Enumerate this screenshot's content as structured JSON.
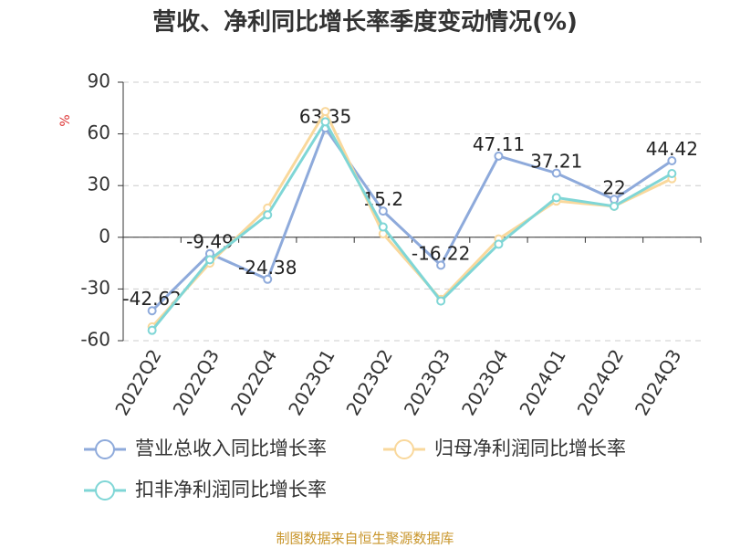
{
  "chart_data": {
    "type": "line",
    "title": "营收、净利同比增长率季度变动情况(%)",
    "y_label": "%",
    "source": "制图数据来自恒生聚源数据库",
    "categories": [
      "2022Q2",
      "2022Q3",
      "2022Q4",
      "2023Q1",
      "2023Q2",
      "2023Q3",
      "2023Q4",
      "2024Q1",
      "2024Q2",
      "2024Q3"
    ],
    "series": [
      {
        "name": "营业总收入同比增长率",
        "color": "#8eaadb",
        "values": [
          -42.62,
          -9.49,
          -24.38,
          63.35,
          15.2,
          -16.22,
          47.11,
          37.21,
          22,
          44.42
        ],
        "show_labels": true
      },
      {
        "name": "归母净利润同比增长率",
        "color": "#f9d89c",
        "values": [
          -52,
          -15,
          17,
          73,
          2,
          -36,
          -1,
          21,
          18,
          34
        ]
      },
      {
        "name": "扣非净利润同比增长率",
        "color": "#7fd6d6",
        "values": [
          -54,
          -13,
          13,
          67,
          6,
          -37,
          -4,
          23,
          18,
          37
        ]
      }
    ],
    "ylim": [
      -60,
      90
    ],
    "yticks": [
      -60,
      -30,
      0,
      30,
      60,
      90
    ],
    "grid": true
  }
}
